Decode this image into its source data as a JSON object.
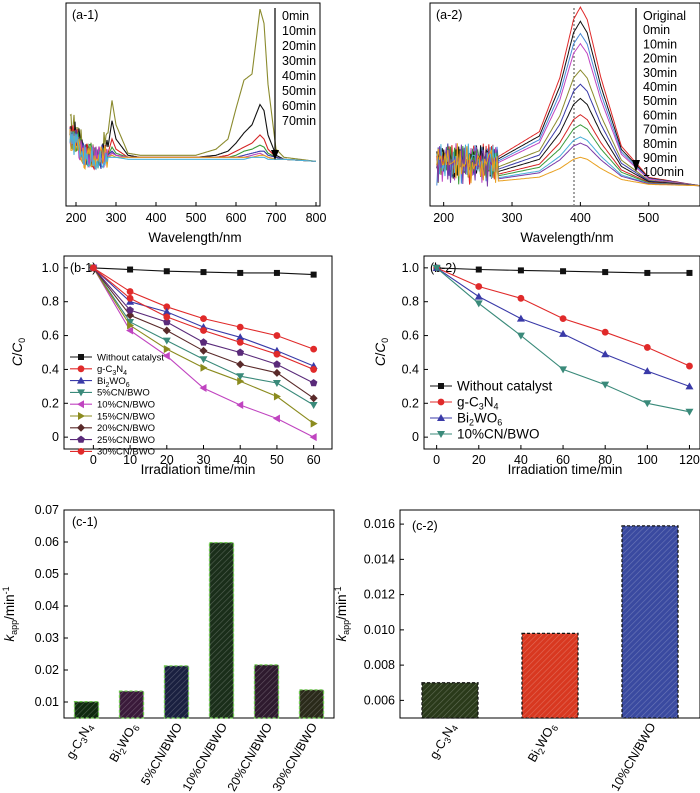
{
  "figure": {
    "a1": {
      "label": "(a-1)",
      "xlabel": "Wavelength/nm",
      "xticks": [
        "200",
        "300",
        "400",
        "500",
        "600",
        "700",
        "800"
      ],
      "time_labels": [
        "0min",
        "10min",
        "20min",
        "30min",
        "40min",
        "50min",
        "60min",
        "70min"
      ]
    },
    "a2": {
      "label": "(a-2)",
      "xlabel": "Wavelength/nm",
      "xticks": [
        "200",
        "300",
        "400",
        "500"
      ],
      "time_labels": [
        "Original",
        "0min",
        "10min",
        "20min",
        "30min",
        "40min",
        "50min",
        "60min",
        "70min",
        "80min",
        "90min",
        "100min"
      ]
    },
    "b1": {
      "label": "(b-1)",
      "xlabel": "Irradiation time/min",
      "ylabel": "C/C0",
      "xticks": [
        "0",
        "10",
        "20",
        "30",
        "40",
        "50",
        "60"
      ],
      "yticks": [
        "0",
        "0.2",
        "0.4",
        "0.6",
        "0.8",
        "1.0"
      ],
      "legend_sub": {
        "g-C3N4": [
          "g-C",
          "3",
          "N",
          "4"
        ],
        "Bi2WO6": [
          "Bi",
          "2",
          "WO",
          "6"
        ]
      }
    },
    "b2": {
      "label": "(b-2)",
      "xlabel": "Irradiation time/min",
      "ylabel": "C/C0",
      "xticks": [
        "0",
        "20",
        "40",
        "60",
        "80",
        "100",
        "120"
      ],
      "yticks": [
        "0",
        "0.2",
        "0.4",
        "0.6",
        "0.8",
        "1.0"
      ]
    },
    "c1": {
      "label": "(c-1)",
      "ylabel": "kapp/min-1",
      "yticks": [
        "0.01",
        "0.02",
        "0.03",
        "0.04",
        "0.05",
        "0.06",
        "0.07"
      ]
    },
    "c2": {
      "label": "(c-2)",
      "ylabel": "kapp/min-1",
      "yticks": [
        "0.006",
        "0.008",
        "0.010",
        "0.012",
        "0.014",
        "0.016"
      ]
    }
  },
  "chart_data": [
    {
      "id": "a1",
      "type": "line",
      "title": "(a-1)",
      "xlabel": "Wavelength/nm",
      "ylabel": "",
      "xlim": [
        175,
        810
      ],
      "ylim": [
        0,
        1
      ],
      "series": [
        {
          "name": "0min",
          "color": "#8b8b2e",
          "x": [
            200,
            220,
            260,
            280,
            290,
            300,
            330,
            360,
            400,
            450,
            500,
            550,
            580,
            600,
            620,
            640,
            660,
            670,
            680,
            700,
            720,
            800
          ],
          "y": [
            0.4,
            0.28,
            0.25,
            0.36,
            0.52,
            0.4,
            0.26,
            0.25,
            0.25,
            0.25,
            0.25,
            0.28,
            0.33,
            0.48,
            0.62,
            0.65,
            0.97,
            0.9,
            0.6,
            0.28,
            0.24,
            0.22
          ]
        },
        {
          "name": "10min",
          "color": "#111111",
          "x": [
            200,
            220,
            260,
            280,
            290,
            300,
            330,
            360,
            400,
            450,
            500,
            550,
            580,
            600,
            620,
            640,
            660,
            670,
            680,
            700,
            720,
            800
          ],
          "y": [
            0.36,
            0.26,
            0.24,
            0.29,
            0.42,
            0.33,
            0.25,
            0.24,
            0.24,
            0.24,
            0.24,
            0.25,
            0.27,
            0.31,
            0.36,
            0.4,
            0.5,
            0.47,
            0.35,
            0.25,
            0.23,
            0.22
          ]
        },
        {
          "name": "20min",
          "color": "#d42525",
          "x": [
            200,
            220,
            260,
            280,
            290,
            300,
            330,
            360,
            400,
            450,
            500,
            550,
            580,
            600,
            620,
            640,
            660,
            670,
            680,
            700,
            720,
            800
          ],
          "y": [
            0.34,
            0.25,
            0.24,
            0.26,
            0.33,
            0.28,
            0.24,
            0.24,
            0.24,
            0.24,
            0.24,
            0.24,
            0.25,
            0.27,
            0.29,
            0.31,
            0.35,
            0.33,
            0.28,
            0.24,
            0.23,
            0.22
          ]
        },
        {
          "name": "30min",
          "color": "#3a9a3a",
          "x": [
            200,
            220,
            260,
            280,
            290,
            300,
            330,
            360,
            400,
            450,
            500,
            550,
            580,
            600,
            620,
            640,
            660,
            670,
            680,
            700,
            720,
            800
          ],
          "y": [
            0.33,
            0.25,
            0.24,
            0.25,
            0.29,
            0.26,
            0.24,
            0.24,
            0.24,
            0.24,
            0.24,
            0.24,
            0.24,
            0.25,
            0.27,
            0.28,
            0.3,
            0.29,
            0.26,
            0.24,
            0.23,
            0.22
          ]
        },
        {
          "name": "40min",
          "color": "#3a3aa8",
          "x": [
            200,
            220,
            260,
            280,
            290,
            300,
            330,
            360,
            400,
            450,
            500,
            550,
            580,
            600,
            620,
            640,
            660,
            670,
            680,
            700,
            720,
            800
          ],
          "y": [
            0.33,
            0.25,
            0.24,
            0.25,
            0.27,
            0.25,
            0.24,
            0.24,
            0.24,
            0.24,
            0.24,
            0.24,
            0.24,
            0.24,
            0.25,
            0.26,
            0.27,
            0.27,
            0.25,
            0.24,
            0.23,
            0.22
          ]
        },
        {
          "name": "50min",
          "color": "#bb44bb",
          "x": [
            200,
            220,
            260,
            280,
            290,
            300,
            330,
            360,
            400,
            450,
            500,
            550,
            580,
            600,
            620,
            640,
            660,
            670,
            680,
            700,
            720,
            800
          ],
          "y": [
            0.32,
            0.24,
            0.24,
            0.24,
            0.26,
            0.25,
            0.24,
            0.24,
            0.24,
            0.24,
            0.24,
            0.24,
            0.24,
            0.24,
            0.24,
            0.25,
            0.26,
            0.25,
            0.24,
            0.23,
            0.23,
            0.22
          ]
        },
        {
          "name": "60min",
          "color": "#e8a020",
          "x": [
            200,
            220,
            260,
            280,
            290,
            300,
            330,
            360,
            400,
            450,
            500,
            550,
            580,
            600,
            620,
            640,
            660,
            670,
            680,
            700,
            720,
            800
          ],
          "y": [
            0.32,
            0.24,
            0.24,
            0.24,
            0.25,
            0.24,
            0.24,
            0.24,
            0.24,
            0.24,
            0.24,
            0.24,
            0.24,
            0.24,
            0.24,
            0.24,
            0.25,
            0.25,
            0.24,
            0.23,
            0.23,
            0.22
          ]
        },
        {
          "name": "70min",
          "color": "#4ab0d8",
          "x": [
            200,
            220,
            260,
            280,
            290,
            300,
            330,
            360,
            400,
            450,
            500,
            550,
            580,
            600,
            620,
            640,
            660,
            670,
            680,
            700,
            720,
            800
          ],
          "y": [
            0.31,
            0.24,
            0.23,
            0.24,
            0.24,
            0.24,
            0.23,
            0.23,
            0.23,
            0.23,
            0.23,
            0.23,
            0.23,
            0.23,
            0.23,
            0.24,
            0.24,
            0.24,
            0.23,
            0.23,
            0.23,
            0.22
          ]
        }
      ],
      "xticks": [
        200,
        300,
        400,
        500,
        600,
        700,
        800
      ]
    },
    {
      "id": "a2",
      "type": "line",
      "title": "(a-2)",
      "xlabel": "Wavelength/nm",
      "ylabel": "",
      "xlim": [
        180,
        575
      ],
      "ylim": [
        0,
        1
      ],
      "xticks": [
        200,
        300,
        400,
        500
      ],
      "peak_positions": [
        400
      ],
      "series": [
        {
          "name": "Original",
          "color": "#e02a2a",
          "peak": 0.98
        },
        {
          "name": "0min",
          "color": "#111111",
          "peak": 0.91
        },
        {
          "name": "10min",
          "color": "#4a8ad8",
          "peak": 0.85
        },
        {
          "name": "20min",
          "color": "#c044c0",
          "peak": 0.8
        },
        {
          "name": "30min",
          "color": "#8b8b2e",
          "peak": 0.67
        },
        {
          "name": "40min",
          "color": "#3a3aa8",
          "peak": 0.6
        },
        {
          "name": "50min",
          "color": "#111111",
          "peak": 0.53
        },
        {
          "name": "60min",
          "color": "#d42525",
          "peak": 0.45
        },
        {
          "name": "70min",
          "color": "#3a9a3a",
          "peak": 0.4
        },
        {
          "name": "80min",
          "color": "#4ab0d8",
          "peak": 0.34
        },
        {
          "name": "90min",
          "color": "#7a3aa8",
          "peak": 0.31
        },
        {
          "name": "100min",
          "color": "#e8a020",
          "peak": 0.24
        }
      ],
      "baseline_series_curve": {
        "x": [
          190,
          250,
          280,
          300,
          340,
          370,
          390,
          400,
          410,
          430,
          460,
          500,
          575
        ],
        "shape": [
          0.2,
          0.28,
          0.28,
          0.32,
          0.4,
          0.66,
          0.94,
          1.0,
          0.94,
          0.66,
          0.33,
          0.18,
          0.14
        ]
      }
    },
    {
      "id": "b1",
      "type": "line",
      "title": "(b-1)",
      "xlabel": "Irradiation time/min",
      "ylabel": "C/C0",
      "xlim": [
        -8,
        65
      ],
      "ylim": [
        -0.07,
        1.07
      ],
      "x": [
        0,
        10,
        20,
        30,
        40,
        50,
        60
      ],
      "series": [
        {
          "name": "Without catalyst",
          "color": "#111111",
          "marker": "square",
          "values": [
            1.0,
            0.99,
            0.98,
            0.975,
            0.97,
            0.97,
            0.96
          ]
        },
        {
          "name": "g-C3N4",
          "color": "#e02a2a",
          "marker": "circle",
          "values": [
            1.0,
            0.86,
            0.77,
            0.7,
            0.65,
            0.6,
            0.52
          ]
        },
        {
          "name": "Bi2WO6",
          "color": "#3a3aa8",
          "marker": "triangle-up",
          "values": [
            1.0,
            0.8,
            0.74,
            0.65,
            0.59,
            0.51,
            0.42
          ]
        },
        {
          "name": "5%CN/BWO",
          "color": "#3a8a7a",
          "marker": "triangle-down",
          "values": [
            1.0,
            0.68,
            0.57,
            0.46,
            0.36,
            0.32,
            0.19
          ]
        },
        {
          "name": "10%CN/BWO",
          "color": "#c044c0",
          "marker": "triangle-left",
          "values": [
            1.0,
            0.63,
            0.48,
            0.29,
            0.19,
            0.11,
            0.0
          ]
        },
        {
          "name": "15%CN/BWO",
          "color": "#8b8b1e",
          "marker": "triangle-right",
          "values": [
            1.0,
            0.66,
            0.52,
            0.41,
            0.33,
            0.24,
            0.08
          ]
        },
        {
          "name": "20%CN/BWO",
          "color": "#5a2a2a",
          "marker": "diamond",
          "values": [
            1.0,
            0.72,
            0.63,
            0.51,
            0.43,
            0.38,
            0.23
          ]
        },
        {
          "name": "25%CN/BWO",
          "color": "#5a2a7a",
          "marker": "pentagon",
          "values": [
            1.0,
            0.75,
            0.68,
            0.56,
            0.5,
            0.43,
            0.32
          ]
        },
        {
          "name": "30%CN/BWO",
          "color": "#e02a2a",
          "marker": "circle",
          "values": [
            1.0,
            0.82,
            0.71,
            0.63,
            0.56,
            0.49,
            0.4
          ]
        }
      ],
      "legend_position": "bottom-left"
    },
    {
      "id": "b2",
      "type": "line",
      "title": "(b-2)",
      "xlabel": "Irradiation time/min",
      "ylabel": "C/C0",
      "xlim": [
        -6,
        125
      ],
      "ylim": [
        -0.07,
        1.07
      ],
      "x": [
        0,
        20,
        40,
        60,
        80,
        100,
        120
      ],
      "series": [
        {
          "name": "Without catalyst",
          "color": "#111111",
          "marker": "square",
          "values": [
            1.0,
            0.99,
            0.985,
            0.98,
            0.975,
            0.97,
            0.97
          ]
        },
        {
          "name": "g-C3N4",
          "color": "#e02a2a",
          "marker": "circle",
          "values": [
            1.0,
            0.89,
            0.82,
            0.7,
            0.62,
            0.53,
            0.42
          ]
        },
        {
          "name": "Bi2WO6",
          "color": "#3a3aa8",
          "marker": "triangle-up",
          "values": [
            1.0,
            0.83,
            0.7,
            0.61,
            0.49,
            0.39,
            0.3
          ]
        },
        {
          "name": "10%CN/BWO",
          "color": "#3a8a7a",
          "marker": "triangle-down",
          "values": [
            1.0,
            0.79,
            0.6,
            0.4,
            0.31,
            0.2,
            0.15
          ]
        }
      ],
      "legend_position": "bottom-left"
    },
    {
      "id": "c1",
      "type": "bar",
      "title": "(c-1)",
      "xlabel": "",
      "ylabel": "kapp/min-1",
      "ylim": [
        0.005,
        0.07
      ],
      "categories": [
        "g-C3N4",
        "Bi2WO6",
        "5%CN/BWO",
        "10%CN/BWO",
        "20%CN/BWO",
        "30%CN/BWO"
      ],
      "values": [
        0.0101,
        0.0134,
        0.0213,
        0.0598,
        0.0216,
        0.0138
      ],
      "colors": [
        "#0f2a0f",
        "#3a1a3a",
        "#1a2040",
        "#1a2e1a",
        "#2e1a2e",
        "#2a2a1a"
      ],
      "category_sub": [
        [
          "g-C",
          "3",
          "N",
          "4"
        ],
        [
          "Bi",
          "2",
          "WO",
          "6"
        ],
        [
          "5%CN/BWO"
        ],
        [
          "10%CN/BWO"
        ],
        [
          "20%CN/BWO"
        ],
        [
          "30%CN/BWO"
        ]
      ]
    },
    {
      "id": "c2",
      "type": "bar",
      "title": "(c-2)",
      "xlabel": "",
      "ylabel": "kapp/min-1",
      "ylim": [
        0.005,
        0.0168
      ],
      "categories": [
        "g-C3N4",
        "Bi2WO6",
        "10%CN/BWO"
      ],
      "values": [
        0.007,
        0.0098,
        0.0159
      ],
      "colors": [
        "#2a3a1a",
        "#d83820",
        "#3a4aa0"
      ],
      "category_sub": [
        [
          "g-C",
          "3",
          "N",
          "4"
        ],
        [
          "Bi",
          "2",
          "WO",
          "6"
        ],
        [
          "10%CN/BWO"
        ]
      ]
    }
  ]
}
